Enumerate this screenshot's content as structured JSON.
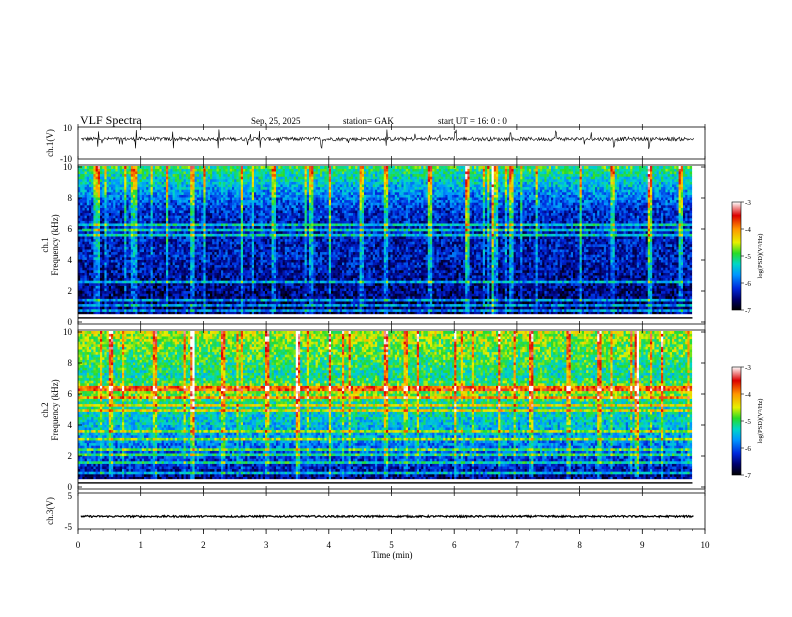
{
  "header": {
    "title": "VLF  Spectra",
    "date": "Sep. 25, 2025",
    "station": "station= GAK",
    "start_ut": "start  UT  =    16: 0   : 0"
  },
  "colorbar": {
    "label": "log(PSD)(V²/Hz)",
    "ticks": [
      -3,
      -4,
      -5,
      -6,
      -7
    ],
    "stops": [
      "#ffffff",
      "#e00000",
      "#ffa000",
      "#ffff00",
      "#00e000",
      "#00d0d0",
      "#0050ff",
      "#000080",
      "#000000"
    ]
  },
  "chart_data": [
    {
      "type": "line",
      "name": "ch1-waveform",
      "ylabel": "ch.1(V)",
      "ylim": [
        -10,
        10
      ],
      "yticks": [
        "10",
        "-10"
      ],
      "xlim": [
        0,
        10
      ],
      "baseline": 2.5,
      "noise": 1.2,
      "spikes": [
        0.32,
        0.92,
        1.52,
        2.24,
        2.9,
        3.88,
        4.92,
        6.02,
        6.9,
        7.62,
        8.55,
        9.11
      ]
    },
    {
      "type": "heatmap",
      "name": "ch1-spectrogram",
      "ylabel": "ch.1",
      "ylabel2": "Frequency  (kHz)",
      "xlim": [
        0,
        9.8
      ],
      "ylim": [
        0,
        10
      ],
      "yticks": [
        "0",
        "2",
        "4",
        "6",
        "8",
        "10"
      ],
      "profile": [
        -6.7,
        -6.6,
        -6.5,
        -6.4,
        -6.3,
        -6.3,
        -6.3,
        -6.2,
        -5.8,
        -5.4,
        -5.0
      ],
      "lines_khz": [
        0.3,
        0.6,
        1.0,
        2.2,
        5.3,
        5.7,
        6.1
      ],
      "spikes_min": [
        0.3,
        0.9,
        1.4,
        1.8,
        2.0,
        2.6,
        3.1,
        3.7,
        4.0,
        4.5,
        4.9,
        5.6,
        6.2,
        6.6,
        6.9,
        7.3,
        8.0,
        8.5,
        9.1,
        9.6
      ]
    },
    {
      "type": "heatmap",
      "name": "ch2-spectrogram",
      "ylabel": "ch.2",
      "ylabel2": "Frequency  (kHz)",
      "xlim": [
        0,
        9.8
      ],
      "ylim": [
        0,
        10
      ],
      "yticks": [
        "0",
        "2",
        "4",
        "6",
        "8",
        "10"
      ],
      "profile": [
        -6.6,
        -6.2,
        -5.9,
        -5.6,
        -5.4,
        -5.3,
        -4.6,
        -5.2,
        -5.0,
        -4.8,
        -4.6
      ],
      "lines_khz": [
        0.4,
        1.1,
        1.7,
        2.0,
        2.7,
        3.2,
        4.6,
        5.0,
        5.5,
        6.0,
        6.3
      ],
      "spikes_min": [
        0.5,
        1.2,
        1.8,
        2.3,
        3.0,
        3.5,
        4.0,
        4.9,
        5.4,
        6.0,
        6.7,
        7.2,
        7.8,
        8.3,
        8.9,
        9.3
      ]
    },
    {
      "type": "line",
      "name": "ch3-waveform",
      "ylabel": "ch.3(V)",
      "ylim": [
        -5,
        5
      ],
      "yticks": [
        "5",
        "-5"
      ],
      "xlim": [
        0,
        10
      ],
      "baseline": -1.5,
      "noise": 0.25
    }
  ],
  "xaxis": {
    "label": "Time  (min)",
    "ticks": [
      "0",
      "1",
      "2",
      "3",
      "4",
      "5",
      "6",
      "7",
      "8",
      "9",
      "10"
    ],
    "range": [
      0,
      10
    ]
  }
}
